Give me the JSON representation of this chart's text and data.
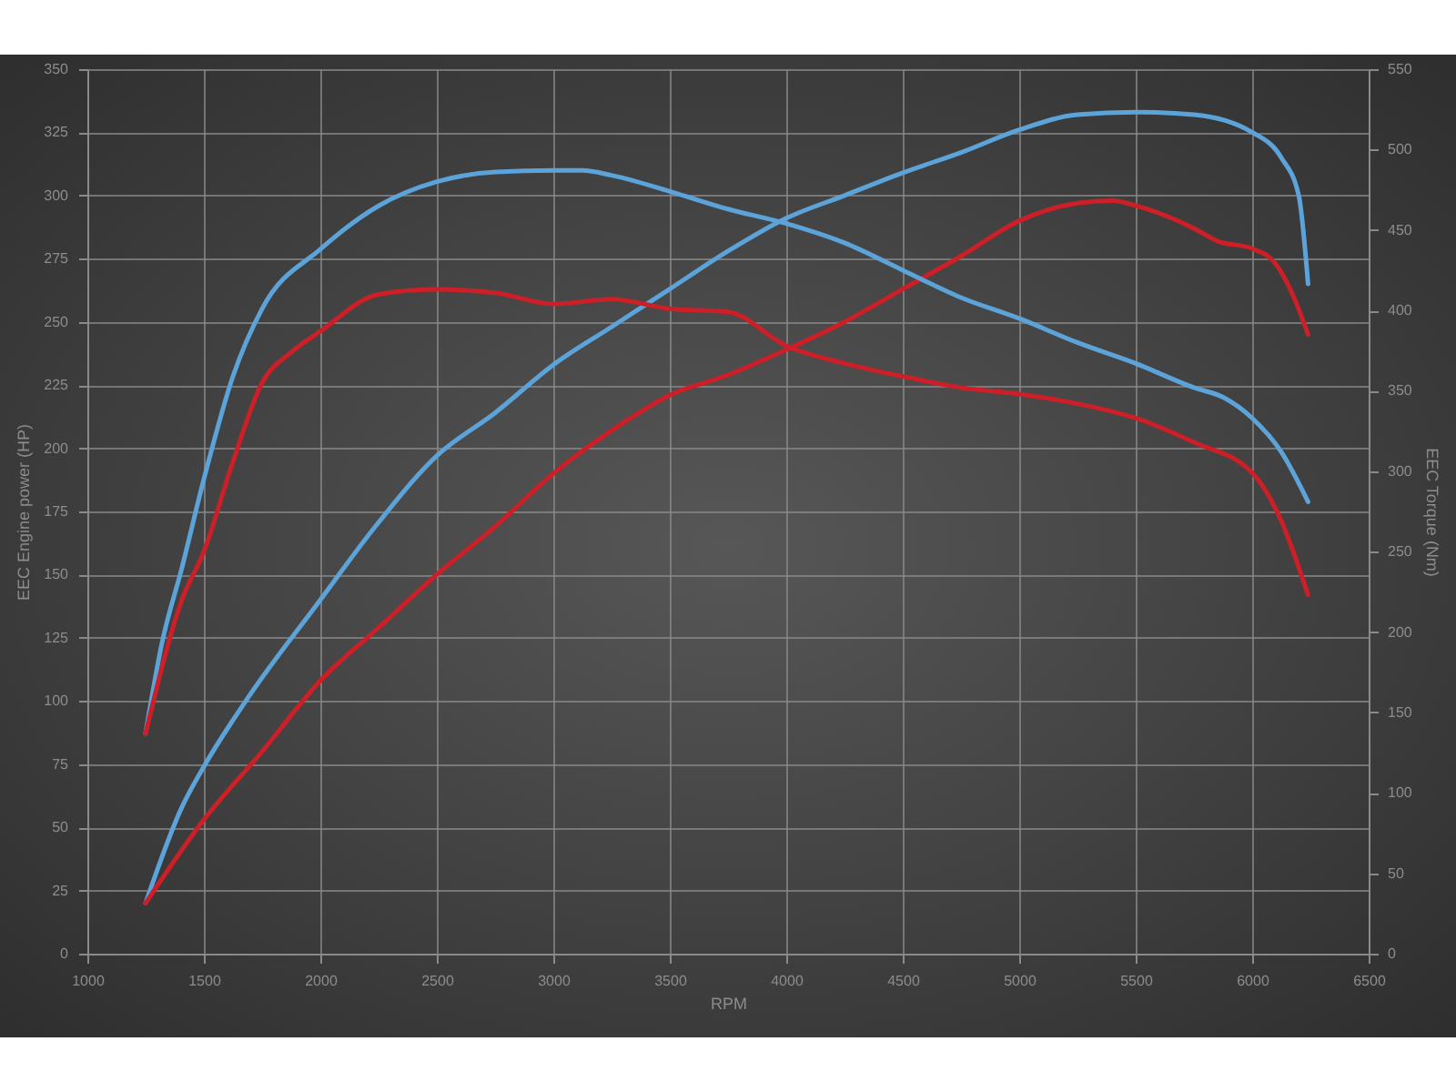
{
  "chart_data": {
    "type": "line",
    "xlabel": "RPM",
    "ylabel": "EEC Engine power (HP)",
    "y2label": "EEC Torque (Nm)",
    "xlim": [
      1000,
      6500
    ],
    "xticks": [
      1000,
      1500,
      2000,
      2500,
      3000,
      3500,
      4000,
      4500,
      5000,
      5500,
      6000,
      6500
    ],
    "ylim": [
      0,
      350
    ],
    "yticks": [
      0,
      25,
      50,
      75,
      100,
      125,
      150,
      175,
      200,
      225,
      250,
      275,
      300,
      325,
      350
    ],
    "y2lim": [
      0,
      550
    ],
    "y2ticks": [
      0,
      50,
      100,
      150,
      200,
      250,
      300,
      350,
      400,
      450,
      500,
      550
    ],
    "grid": true,
    "series": [
      {
        "color": "#5ba3d9",
        "x": [
          1250,
          1406,
          1500,
          1680,
          2000,
          2227,
          2500,
          2750,
          3000,
          3250,
          3500,
          3750,
          4000,
          4250,
          4500,
          4750,
          5000,
          5250,
          5500,
          5750,
          6000,
          6125,
          6200,
          6240
        ],
        "values": [
          20,
          58,
          74,
          100,
          140,
          168,
          197,
          214,
          233,
          248,
          263,
          278,
          291,
          300,
          309,
          317,
          326,
          332,
          333,
          332,
          325,
          315,
          300,
          265
        ]
      },
      {
        "color": "#cc1f27",
        "x": [
          1250,
          1500,
          1750,
          2000,
          2250,
          2500,
          2750,
          3000,
          3250,
          3500,
          3750,
          4000,
          4250,
          4500,
          4750,
          5000,
          5250,
          5400,
          5500,
          5750,
          5850,
          6000,
          6100,
          6200,
          6240
        ],
        "values": [
          20,
          53,
          80,
          108,
          129,
          150,
          169,
          190,
          207,
          221,
          229,
          239,
          250,
          263,
          276,
          290,
          297,
          298,
          296,
          287,
          282,
          279,
          273,
          255,
          245
        ]
      },
      {
        "color": "#5ba3d9",
        "axis": "y2",
        "x": [
          1250,
          1320,
          1406,
          1500,
          1625,
          1750,
          2000,
          2250,
          2500,
          2750,
          3000,
          3125,
          3250,
          3500,
          3750,
          4000,
          4250,
          4500,
          4750,
          5000,
          5250,
          5500,
          5750,
          5875,
          6000,
          6125,
          6240
        ],
        "values": [
          137,
          193,
          240,
          295,
          359,
          401,
          438,
          465,
          480,
          486,
          487,
          487,
          484,
          474,
          463,
          454,
          442,
          425,
          408,
          395,
          380,
          367,
          352,
          346,
          333,
          312,
          281
        ]
      },
      {
        "color": "#cc1f27",
        "axis": "y2",
        "x": [
          1250,
          1406,
          1500,
          1625,
          1750,
          1875,
          2000,
          2250,
          2500,
          2750,
          3000,
          3250,
          3500,
          3750,
          4000,
          4250,
          4500,
          4750,
          5000,
          5250,
          5500,
          5750,
          6000,
          6125,
          6240
        ],
        "values": [
          137,
          220,
          250,
          306,
          355,
          374,
          387,
          410,
          413,
          411,
          404,
          407,
          401,
          399,
          378,
          367,
          359,
          352,
          348,
          342,
          333,
          318,
          299,
          269,
          223
        ]
      }
    ]
  }
}
